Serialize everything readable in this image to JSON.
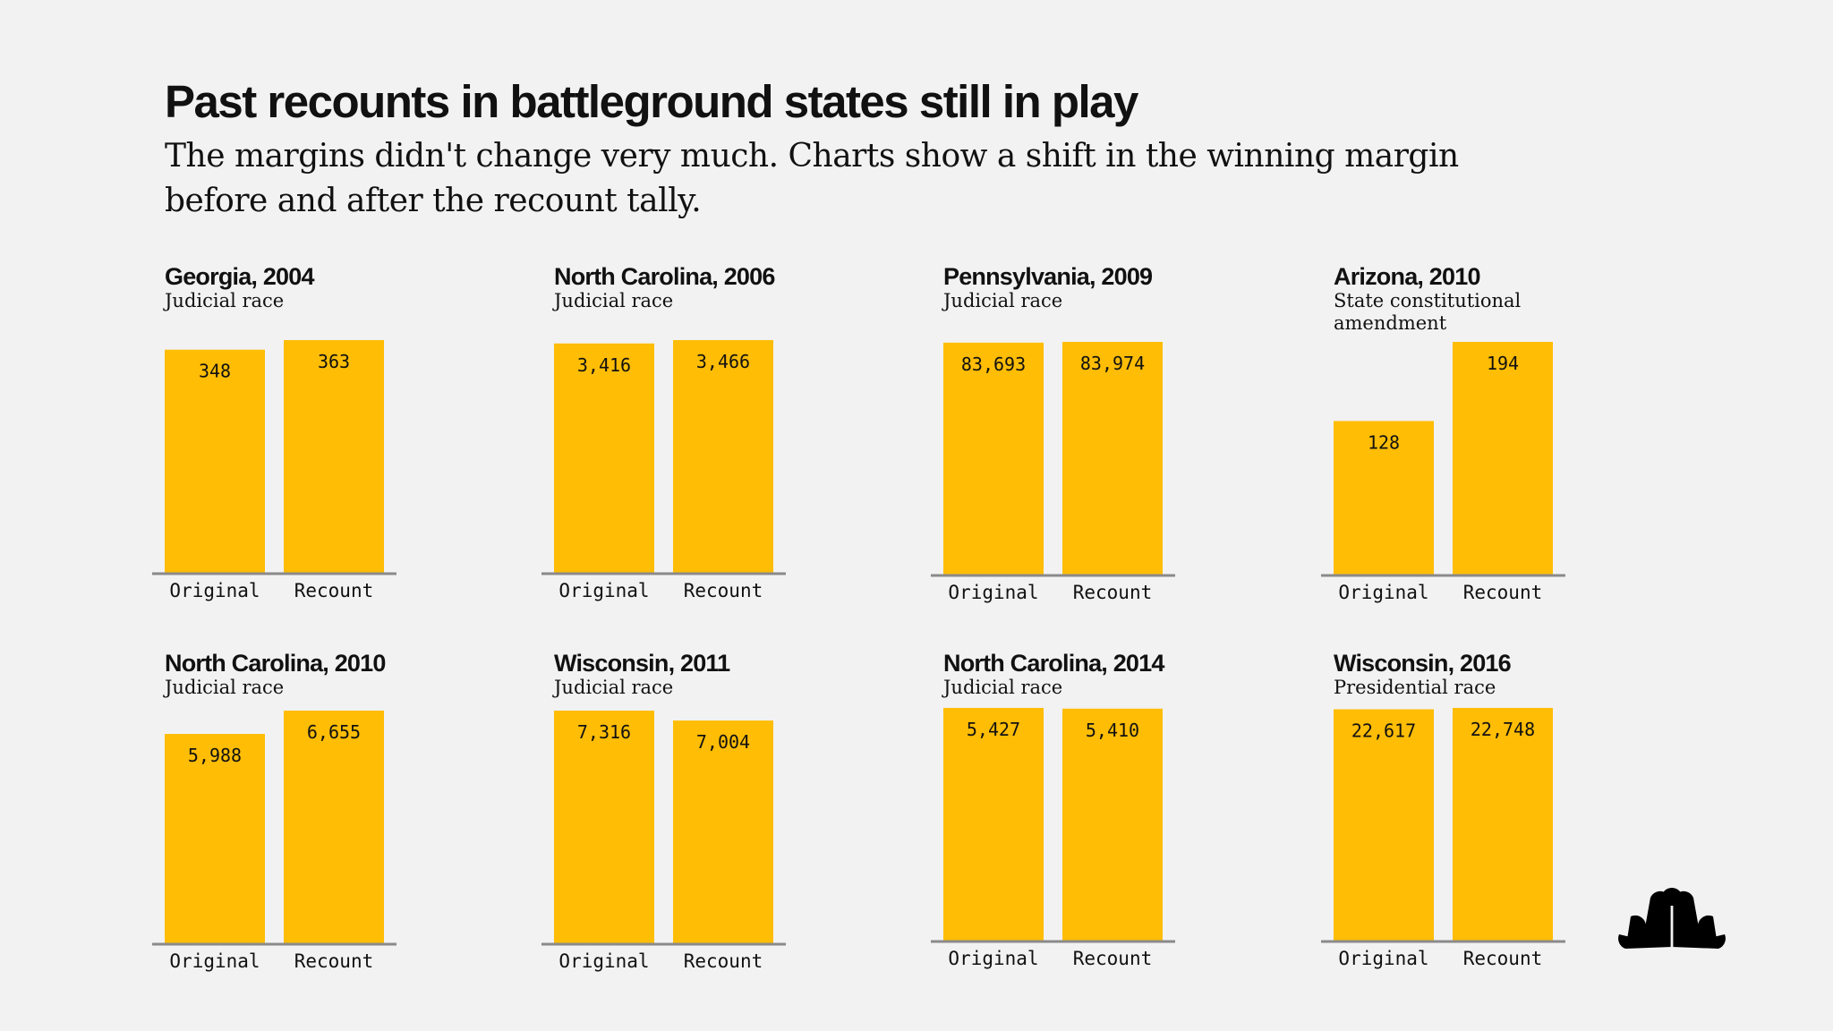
{
  "page": {
    "title": "Past recounts in battleground states still in play",
    "subtitle": "The margins didn't change very much. Charts show a shift in the winning margin before and after the recount tally."
  },
  "colors": {
    "bar": "#FFBD06",
    "axis": "#8a8a8a",
    "background": "#f2f2f2",
    "logo": "#000000"
  },
  "logo": {
    "icon": "peacock-logo-icon"
  },
  "chart_data": [
    {
      "type": "bar",
      "title": "Georgia, 2004",
      "subtitle": "Judicial race",
      "categories": [
        "Original",
        "Recount"
      ],
      "values": [
        348,
        363
      ],
      "labels": [
        "348",
        "363"
      ]
    },
    {
      "type": "bar",
      "title": "North Carolina, 2006",
      "subtitle": "Judicial race",
      "categories": [
        "Original",
        "Recount"
      ],
      "values": [
        3416,
        3466
      ],
      "labels": [
        "3,416",
        "3,466"
      ]
    },
    {
      "type": "bar",
      "title": "Pennsylvania, 2009",
      "subtitle": "Judicial race",
      "categories": [
        "Original",
        "Recount"
      ],
      "values": [
        83693,
        83974
      ],
      "labels": [
        "83,693",
        "83,974"
      ]
    },
    {
      "type": "bar",
      "title": "Arizona, 2010",
      "subtitle": "State constitutional amendment",
      "categories": [
        "Original",
        "Recount"
      ],
      "values": [
        128,
        194
      ],
      "labels": [
        "128",
        "194"
      ]
    },
    {
      "type": "bar",
      "title": "North Carolina, 2010",
      "subtitle": "Judicial race",
      "categories": [
        "Original",
        "Recount"
      ],
      "values": [
        5988,
        6655
      ],
      "labels": [
        "5,988",
        "6,655"
      ]
    },
    {
      "type": "bar",
      "title": "Wisconsin, 2011",
      "subtitle": "Judicial race",
      "categories": [
        "Original",
        "Recount"
      ],
      "values": [
        7316,
        7004
      ],
      "labels": [
        "7,316",
        "7,004"
      ]
    },
    {
      "type": "bar",
      "title": "North Carolina, 2014",
      "subtitle": "Judicial race",
      "categories": [
        "Original",
        "Recount"
      ],
      "values": [
        5427,
        5410
      ],
      "labels": [
        "5,427",
        "5,410"
      ]
    },
    {
      "type": "bar",
      "title": "Wisconsin, 2016",
      "subtitle": "Presidential race",
      "categories": [
        "Original",
        "Recount"
      ],
      "values": [
        22617,
        22748
      ],
      "labels": [
        "22,617",
        "22,748"
      ]
    }
  ]
}
